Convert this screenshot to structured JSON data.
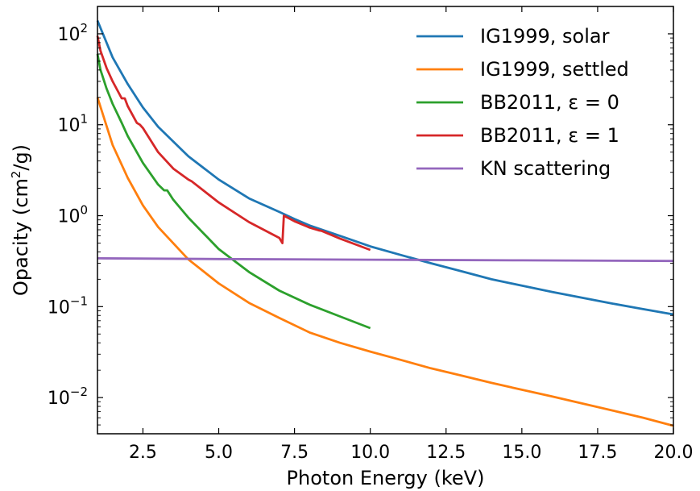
{
  "chart_data": {
    "type": "line",
    "title": "",
    "xlabel": "Photon Energy (keV)",
    "ylabel_prefix": "Opacity (cm",
    "ylabel_sup": "2",
    "ylabel_suffix": "/g)",
    "xlim": [
      1.0,
      20.0
    ],
    "ylim": [
      0.004,
      200
    ],
    "yscale": "log",
    "grid": false,
    "legend_position": "top-right",
    "xticks": [
      2.5,
      5.0,
      7.5,
      10.0,
      12.5,
      15.0,
      17.5,
      20.0
    ],
    "xtick_labels": [
      "2.5",
      "5.0",
      "7.5",
      "10.0",
      "12.5",
      "15.0",
      "17.5",
      "20.0"
    ],
    "yticks": [
      {
        "value": 0.01,
        "base": "10",
        "exp": "−2"
      },
      {
        "value": 0.1,
        "base": "10",
        "exp": "−1"
      },
      {
        "value": 1,
        "base": "10",
        "exp": "0"
      },
      {
        "value": 10,
        "base": "10",
        "exp": "1"
      },
      {
        "value": 100,
        "base": "10",
        "exp": "2"
      }
    ],
    "series": [
      {
        "name": "IG1999, solar",
        "color": "#1f77b4",
        "x": [
          1.0,
          1.5,
          2.0,
          2.5,
          3.0,
          4.0,
          5.0,
          6.0,
          7.0,
          7.5,
          8.0,
          9.0,
          10.0,
          11.0,
          12.0,
          13.0,
          14.0,
          15.0,
          16.0,
          17.0,
          18.0,
          19.0,
          20.0
        ],
        "y": [
          140,
          55,
          28,
          15.5,
          9.5,
          4.5,
          2.5,
          1.55,
          1.1,
          0.92,
          0.78,
          0.6,
          0.46,
          0.37,
          0.3,
          0.245,
          0.2,
          0.17,
          0.145,
          0.125,
          0.108,
          0.094,
          0.082
        ]
      },
      {
        "name": "IG1999, settled",
        "color": "#ff7f0e",
        "x": [
          1.0,
          1.5,
          2.0,
          2.5,
          3.0,
          4.0,
          5.0,
          6.0,
          7.0,
          8.0,
          9.0,
          10.0,
          11.0,
          12.0,
          13.0,
          14.0,
          15.0,
          16.0,
          17.0,
          18.0,
          19.0,
          20.0
        ],
        "y": [
          20,
          6.0,
          2.6,
          1.3,
          0.75,
          0.33,
          0.18,
          0.11,
          0.075,
          0.052,
          0.04,
          0.032,
          0.026,
          0.021,
          0.0175,
          0.0145,
          0.0122,
          0.0103,
          0.0086,
          0.0072,
          0.006,
          0.0049
        ]
      },
      {
        "name": "BB2011, ε = 0",
        "color": "#2ca02c",
        "x": [
          1.0,
          1.1,
          1.3,
          1.5,
          1.8,
          2.0,
          2.5,
          3.0,
          3.2,
          3.3,
          3.5,
          4.0,
          5.0,
          6.0,
          7.0,
          8.0,
          9.0,
          10.0
        ],
        "y": [
          60,
          40,
          25,
          17,
          10.5,
          7.5,
          3.8,
          2.2,
          1.9,
          1.9,
          1.5,
          0.95,
          0.43,
          0.24,
          0.15,
          0.105,
          0.078,
          0.058
        ]
      },
      {
        "name": "BB2011, ε = 1",
        "color": "#d62728",
        "x": [
          1.0,
          1.1,
          1.3,
          1.5,
          1.8,
          1.9,
          2.0,
          2.3,
          2.4,
          2.5,
          3.0,
          3.5,
          4.0,
          4.1,
          5.0,
          6.0,
          7.0,
          7.1,
          7.15,
          7.5,
          8.0,
          8.3,
          8.4,
          9.0,
          10.0
        ],
        "y": [
          95,
          65,
          42,
          30,
          19.5,
          19.5,
          16,
          10.5,
          10,
          9.2,
          5.0,
          3.3,
          2.5,
          2.4,
          1.4,
          0.85,
          0.57,
          0.5,
          1.0,
          0.87,
          0.74,
          0.69,
          0.68,
          0.56,
          0.42
        ]
      },
      {
        "name": "KN scattering",
        "color": "#9467bd",
        "x": [
          1.0,
          5.0,
          10.0,
          15.0,
          20.0
        ],
        "y": [
          0.34,
          0.334,
          0.328,
          0.323,
          0.318
        ]
      }
    ]
  }
}
